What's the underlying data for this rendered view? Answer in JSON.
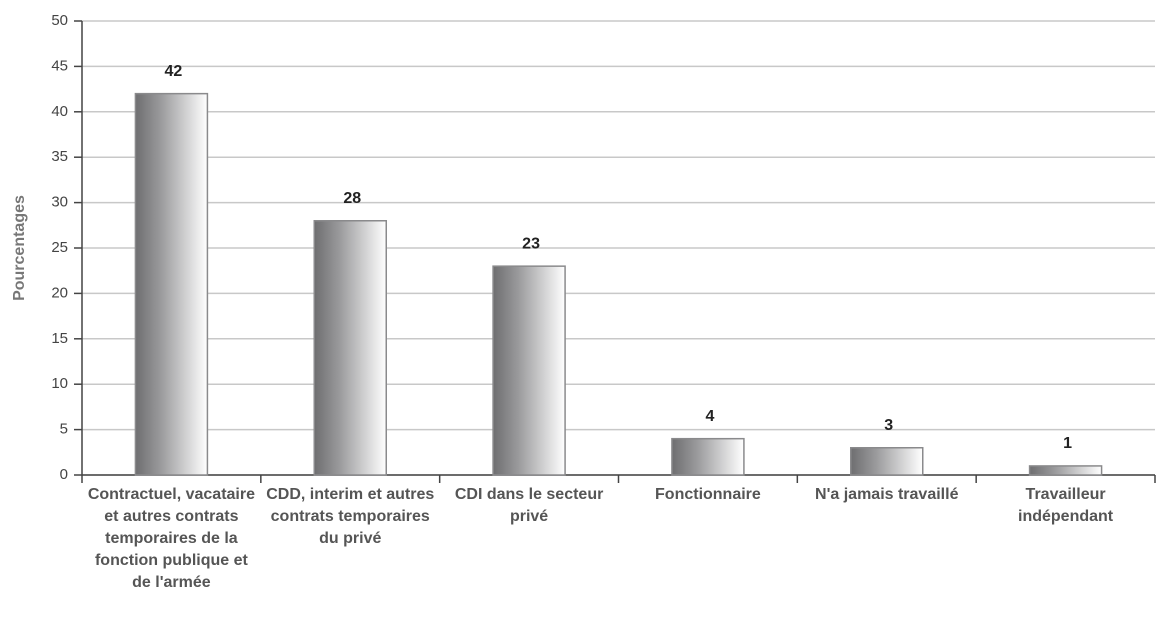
{
  "chart_data": {
    "type": "bar",
    "y_label": "Pourcentages",
    "categories": [
      "Contractuel, vacataire et autres contrats temporaires de la fonction publique et de l'armée",
      "CDD, interim et autres contrats temporaires du privé",
      "CDI dans le secteur privé",
      "Fonctionnaire",
      "N'a jamais travaillé",
      "Travailleur indépendant"
    ],
    "values": [
      42,
      28,
      23,
      4,
      3,
      1
    ],
    "color": "#6e6e70",
    "ylim": [
      0,
      50
    ],
    "yticks": [
      0,
      5,
      10,
      15,
      20,
      25,
      30,
      35,
      40,
      45,
      50
    ],
    "grid": true
  }
}
